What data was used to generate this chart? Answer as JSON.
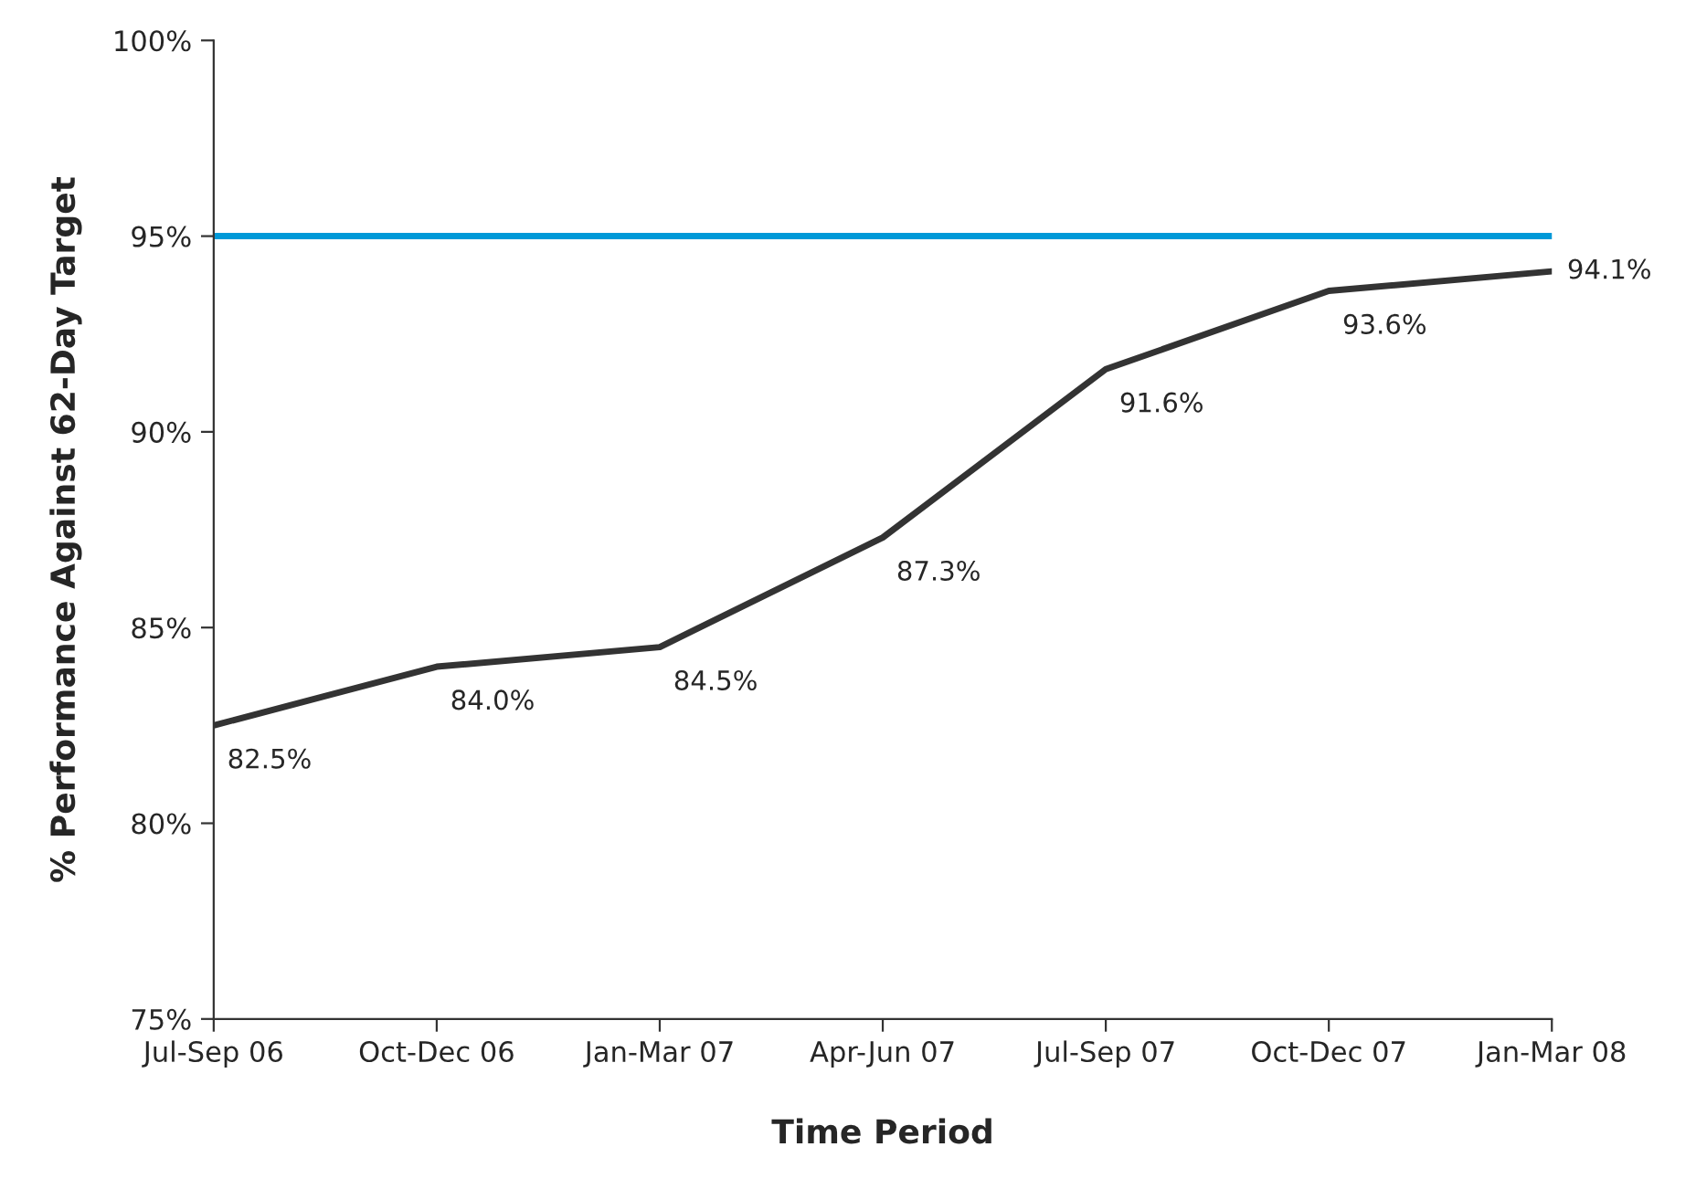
{
  "chart_data": {
    "type": "line",
    "xlabel": "Time Period",
    "ylabel": "% Performance Against 62-Day Target",
    "categories": [
      "Jul-Sep 06",
      "Oct-Dec 06",
      "Jan-Mar 07",
      "Apr-Jun 07",
      "Jul-Sep 07",
      "Oct-Dec 07",
      "Jan-Mar 08"
    ],
    "series": [
      {
        "color": "#333333",
        "values": [
          82.5,
          84.0,
          84.5,
          87.3,
          91.6,
          93.6,
          94.1
        ],
        "value_labels": [
          "82.5%",
          "84.0%",
          "84.5%",
          "87.3%",
          "91.6%",
          "93.6%",
          "94.1%"
        ]
      }
    ],
    "ylim": [
      75,
      100
    ],
    "yticks": [
      {
        "value": 75,
        "label": "75%"
      },
      {
        "value": 80,
        "label": "80%"
      },
      {
        "value": 85,
        "label": "85%"
      },
      {
        "value": 90,
        "label": "90%"
      },
      {
        "value": 95,
        "label": "95%"
      },
      {
        "value": 100,
        "label": "100%"
      }
    ],
    "ref_lines": [
      {
        "axis": "y",
        "value": 95,
        "color": "#0099d8",
        "line_style": "solid"
      }
    ],
    "grid": false,
    "legend": false,
    "marker": "none",
    "line_style": "solid"
  }
}
